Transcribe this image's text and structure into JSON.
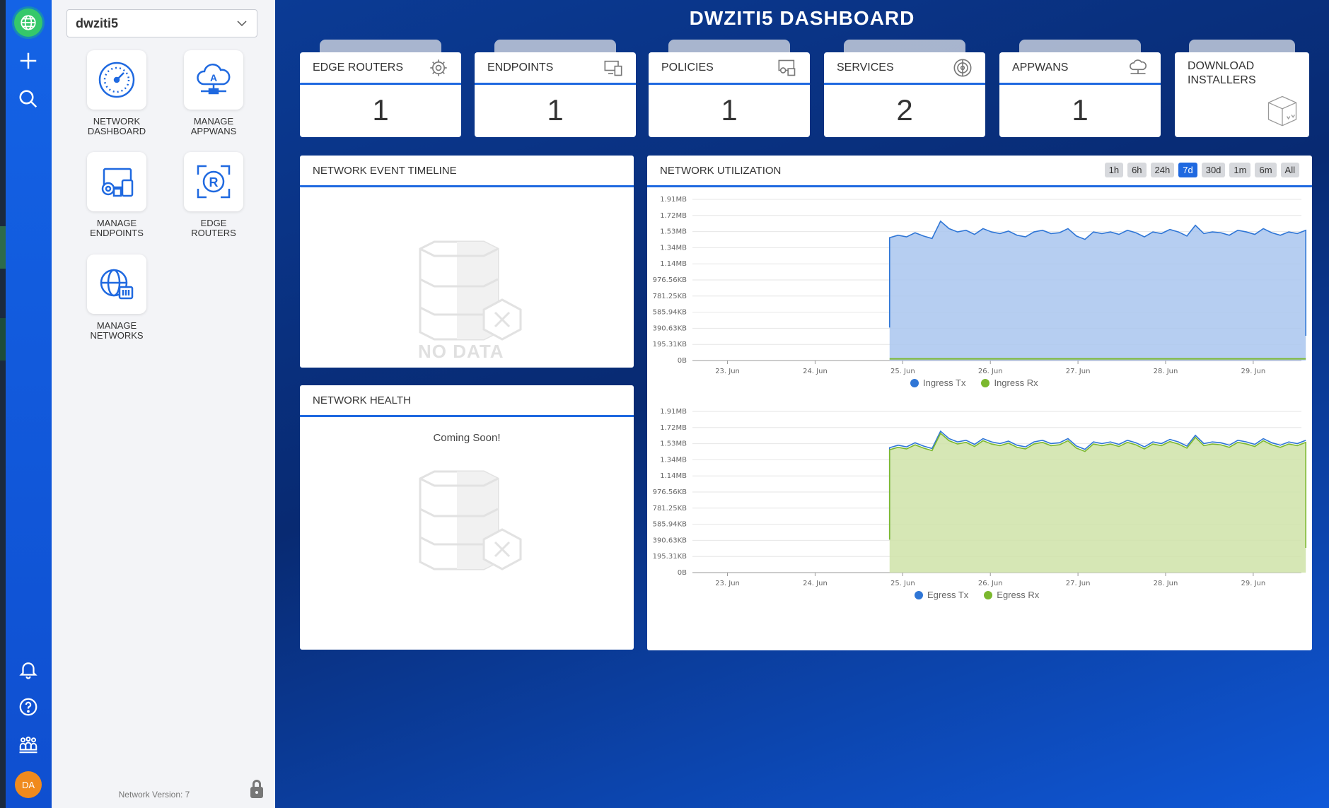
{
  "header": {
    "title": "DWZITI5 DASHBOARD"
  },
  "sidebar": {
    "network_selected": "dwziti5",
    "tiles": [
      {
        "label": "NETWORK\nDASHBOARD",
        "icon": "dashboard-gauge-icon"
      },
      {
        "label": "MANAGE\nAPPWANS",
        "icon": "cloud-appwan-icon"
      },
      {
        "label": "MANAGE\nENDPOINTS",
        "icon": "endpoints-devices-icon"
      },
      {
        "label": "EDGE\nROUTERS",
        "icon": "router-r-icon"
      },
      {
        "label": "MANAGE\nNETWORKS",
        "icon": "globe-settings-icon"
      }
    ],
    "network_version": "Network Version: 7"
  },
  "rail": {
    "avatar_initials": "DA"
  },
  "stats": [
    {
      "label": "EDGE ROUTERS",
      "value": "1",
      "icon": "gear-icon"
    },
    {
      "label": "ENDPOINTS",
      "value": "1",
      "icon": "devices-icon"
    },
    {
      "label": "POLICIES",
      "value": "1",
      "icon": "policy-icon"
    },
    {
      "label": "SERVICES",
      "value": "2",
      "icon": "services-icon"
    },
    {
      "label": "APPWANS",
      "value": "1",
      "icon": "appwan-cloud-icon"
    }
  ],
  "download": {
    "label": "DOWNLOAD\nINSTALLERS",
    "icon": "box-download-icon"
  },
  "panels": {
    "timeline_title": "NETWORK EVENT TIMELINE",
    "nodata": "NO DATA",
    "health_title": "NETWORK HEALTH",
    "health_message": "Coming Soon!",
    "util_title": "NETWORK UTILIZATION"
  },
  "ranges": {
    "options": [
      "1h",
      "6h",
      "24h",
      "7d",
      "30d",
      "1m",
      "6m",
      "All"
    ],
    "selected": "7d"
  },
  "colors": {
    "accent": "#1f69e0",
    "tx": "#2f76d6",
    "rx": "#7bb82e",
    "ingress_fill": "#a9c6ee",
    "egress_fill": "#cfe3a8"
  },
  "chart_data": [
    {
      "type": "area",
      "x_labels": [
        "23. Jun",
        "24. Jun",
        "25. Jun",
        "26. Jun",
        "27. Jun",
        "28. Jun",
        "29. Jun"
      ],
      "y_ticks": [
        "1.91MB",
        "1.72MB",
        "1.53MB",
        "1.34MB",
        "1.14MB",
        "976.56KB",
        "781.25KB",
        "585.94KB",
        "390.63KB",
        "195.31KB",
        "0B"
      ],
      "ylim_kb": [
        0,
        1955
      ],
      "start_day": 24.85,
      "end_day": 29.6,
      "series": [
        {
          "name": "Ingress Tx",
          "color": "#2f76d6",
          "base_kb": 1540,
          "values_kb": [
            1490,
            1520,
            1500,
            1550,
            1510,
            1480,
            1690,
            1600,
            1560,
            1580,
            1530,
            1600,
            1560,
            1540,
            1570,
            1520,
            1500,
            1560,
            1580,
            1540,
            1550,
            1600,
            1510,
            1470,
            1560,
            1540,
            1560,
            1530,
            1580,
            1550,
            1500,
            1560,
            1540,
            1590,
            1560,
            1510,
            1640,
            1540,
            1560,
            1550,
            1520,
            1580,
            1560,
            1530,
            1600,
            1550,
            1520,
            1560,
            1540,
            1580
          ]
        },
        {
          "name": "Ingress Rx",
          "color": "#7bb82e",
          "values_kb": [
            20,
            20,
            20,
            20,
            20
          ]
        }
      ]
    },
    {
      "type": "area",
      "x_labels": [
        "23. Jun",
        "24. Jun",
        "25. Jun",
        "26. Jun",
        "27. Jun",
        "28. Jun",
        "29. Jun"
      ],
      "y_ticks": [
        "1.91MB",
        "1.72MB",
        "1.53MB",
        "1.34MB",
        "1.14MB",
        "976.56KB",
        "781.25KB",
        "585.94KB",
        "390.63KB",
        "195.31KB",
        "0B"
      ],
      "ylim_kb": [
        0,
        1955
      ],
      "start_day": 24.85,
      "end_day": 29.6,
      "series": [
        {
          "name": "Egress Tx",
          "color": "#2f76d6"
        },
        {
          "name": "Egress Rx",
          "color": "#7bb82e",
          "values_kb": [
            1490,
            1520,
            1500,
            1550,
            1510,
            1480,
            1690,
            1600,
            1560,
            1580,
            1530,
            1600,
            1560,
            1540,
            1570,
            1520,
            1500,
            1560,
            1580,
            1540,
            1550,
            1600,
            1510,
            1470,
            1560,
            1540,
            1560,
            1530,
            1580,
            1550,
            1500,
            1560,
            1540,
            1590,
            1560,
            1510,
            1640,
            1540,
            1560,
            1550,
            1520,
            1580,
            1560,
            1530,
            1600,
            1550,
            1520,
            1560,
            1540,
            1580
          ]
        }
      ]
    }
  ]
}
